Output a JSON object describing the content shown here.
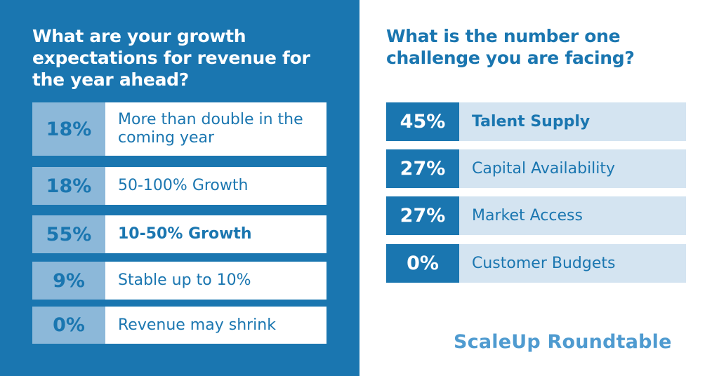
{
  "left": {
    "title": "What are your growth expectations for revenue for the year ahead?",
    "rows": [
      {
        "pct": "18%",
        "label": "More than double in the coming year",
        "highlight": false
      },
      {
        "pct": "18%",
        "label": "50-100% Growth",
        "highlight": false
      },
      {
        "pct": "55%",
        "label": "10-50% Growth",
        "highlight": true
      },
      {
        "pct": "9%",
        "label": "Stable up to 10%",
        "highlight": false
      },
      {
        "pct": "0%",
        "label": "Revenue may shrink",
        "highlight": false
      }
    ]
  },
  "right": {
    "title": "What is the number one challenge you are facing?",
    "rows": [
      {
        "pct": "45%",
        "label": "Talent Supply",
        "highlight": true
      },
      {
        "pct": "27%",
        "label": "Capital Availability",
        "highlight": false
      },
      {
        "pct": "27%",
        "label": "Market Access",
        "highlight": false
      },
      {
        "pct": "0%",
        "label": "Customer Budgets",
        "highlight": false
      }
    ]
  },
  "brand": "ScaleUp Roundtable",
  "colors": {
    "primary_blue": "#1a76b0",
    "light_blue_pct": "#8cb8d9",
    "pale_blue_label": "#d4e4f1",
    "brand_blue": "#4f9bd0"
  },
  "chart_data": [
    {
      "type": "table",
      "title": "What are your growth expectations for revenue for the year ahead?",
      "categories": [
        "More than double in the coming year",
        "50-100% Growth",
        "10-50% Growth",
        "Stable up to 10%",
        "Revenue may shrink"
      ],
      "values": [
        18,
        18,
        55,
        9,
        0
      ]
    },
    {
      "type": "table",
      "title": "What is the number one challenge you are facing?",
      "categories": [
        "Talent Supply",
        "Capital Availability",
        "Market Access",
        "Customer Budgets"
      ],
      "values": [
        45,
        27,
        27,
        0
      ]
    }
  ]
}
